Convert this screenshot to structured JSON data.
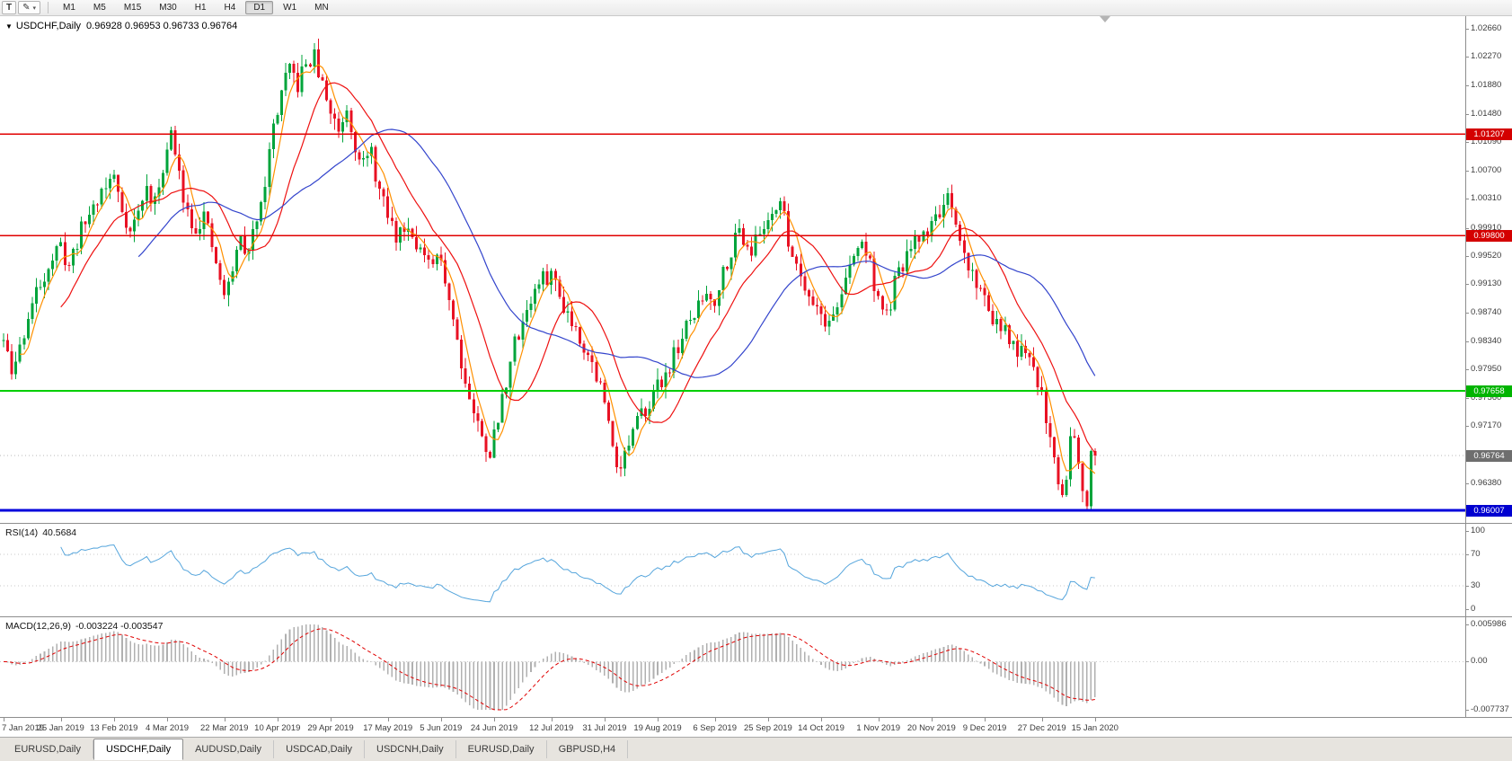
{
  "toolbar": {
    "text_tool_glyph": "T",
    "draw_tool_glyph": "✎",
    "caret_glyph": "▾",
    "timeframes": [
      "M1",
      "M5",
      "M15",
      "M30",
      "H1",
      "H4",
      "D1",
      "W1",
      "MN"
    ],
    "active_timeframe": "D1"
  },
  "chart": {
    "collapse_icon": "▼",
    "symbol": "USDCHF,Daily",
    "ohlc": "0.96928 0.96953 0.96733 0.96764"
  },
  "price_axis": {
    "range": [
      0.95833,
      1.02834
    ],
    "ticks": [
      "1.02660",
      "1.02270",
      "1.01880",
      "1.01480",
      "1.01090",
      "1.00700",
      "1.00310",
      "0.99910",
      "0.99520",
      "0.99130",
      "0.98740",
      "0.98340",
      "0.97950",
      "0.97560",
      "0.97170",
      "0.96380"
    ]
  },
  "hlines": [
    {
      "value": 1.01207,
      "label": "1.01207",
      "color": "#e00000",
      "tag_bg": "#d40000",
      "width": 1.4
    },
    {
      "value": 0.998,
      "label": "0.99800",
      "color": "#e00000",
      "tag_bg": "#d40000",
      "width": 1.4
    },
    {
      "value": 0.97658,
      "label": "0.97658",
      "color": "#00ce00",
      "tag_bg": "#00b400",
      "width": 2
    },
    {
      "value": 0.96007,
      "label": "0.96007",
      "color": "#0000dc",
      "tag_bg": "#0000d0",
      "width": 3
    }
  ],
  "current_price": {
    "value": 0.96764,
    "label": "0.96764",
    "tag_bg": "#6e6e6e",
    "line_color": "#b8b8b8"
  },
  "rsi": {
    "name": "RSI(14)",
    "value": "40.5684",
    "period": 14,
    "color": "#55a5dc",
    "levels": [
      70,
      30
    ],
    "ticks": [
      {
        "v": 100,
        "label": "100"
      },
      {
        "v": 70,
        "label": "70"
      },
      {
        "v": 30,
        "label": "30"
      },
      {
        "v": 0,
        "label": "0"
      }
    ]
  },
  "macd": {
    "name": "MACD(12,26,9)",
    "values": "-0.003224 -0.003547",
    "fast": 12,
    "slow": 26,
    "signal": 9,
    "hist_color": "#b0b0b0",
    "signal_color": "#e00000",
    "axis_max": {
      "v": 0.005986,
      "label": "0.005986"
    },
    "axis_zero": {
      "label": "0.00"
    },
    "axis_min": {
      "v": -0.007737,
      "label": "-0.007737"
    }
  },
  "date_axis": [
    {
      "label": "7 Jan 2019",
      "i": 0
    },
    {
      "label": "25 Jan 2019",
      "i": 14
    },
    {
      "label": "13 Feb 2019",
      "i": 27
    },
    {
      "label": "4 Mar 2019",
      "i": 40
    },
    {
      "label": "22 Mar 2019",
      "i": 54
    },
    {
      "label": "10 Apr 2019",
      "i": 67
    },
    {
      "label": "29 Apr 2019",
      "i": 80
    },
    {
      "label": "17 May 2019",
      "i": 94
    },
    {
      "label": "5 Jun 2019",
      "i": 107
    },
    {
      "label": "24 Jun 2019",
      "i": 120
    },
    {
      "label": "12 Jul 2019",
      "i": 134
    },
    {
      "label": "31 Jul 2019",
      "i": 147
    },
    {
      "label": "19 Aug 2019",
      "i": 160
    },
    {
      "label": "6 Sep 2019",
      "i": 174
    },
    {
      "label": "25 Sep 2019",
      "i": 187
    },
    {
      "label": "14 Oct 2019",
      "i": 200
    },
    {
      "label": "1 Nov 2019",
      "i": 214
    },
    {
      "label": "20 Nov 2019",
      "i": 227
    },
    {
      "label": "9 Dec 2019",
      "i": 240
    },
    {
      "label": "27 Dec 2019",
      "i": 254
    },
    {
      "label": "15 Jan 2020",
      "i": 267
    }
  ],
  "tabs": [
    {
      "label": "EURUSD,Daily",
      "active": false
    },
    {
      "label": "USDCHF,Daily",
      "active": true
    },
    {
      "label": "AUDUSD,Daily",
      "active": false
    },
    {
      "label": "USDCAD,Daily",
      "active": false
    },
    {
      "label": "USDCNH,Daily",
      "active": false
    },
    {
      "label": "EURUSD,Daily",
      "active": false
    },
    {
      "label": "GBPUSD,H4",
      "active": false
    }
  ],
  "chart_data": {
    "type": "candlestick",
    "symbol": "USDCHF",
    "timeframe": "Daily",
    "count": 268,
    "seed": 11,
    "last_close": 0.96764,
    "last_candle": {
      "open": 0.96928,
      "high": 0.96953,
      "low": 0.96733,
      "close": 0.96764
    },
    "bull_color": "#00a43b",
    "bear_color": "#e81123",
    "ma": [
      {
        "period": 5,
        "method": "sma",
        "color": "#ff9000"
      },
      {
        "period": 15,
        "method": "sma",
        "color": "#ee1111"
      },
      {
        "period": 34,
        "method": "sma",
        "color": "#3344cc"
      }
    ],
    "waypoints": [
      [
        0,
        0.9835
      ],
      [
        2,
        0.9788
      ],
      [
        4,
        0.9825
      ],
      [
        6,
        0.9868
      ],
      [
        8,
        0.99
      ],
      [
        10,
        0.9928
      ],
      [
        12,
        0.995
      ],
      [
        14,
        0.9963
      ],
      [
        16,
        0.9938
      ],
      [
        18,
        0.9974
      ],
      [
        20,
        1.0
      ],
      [
        22,
        1.0022
      ],
      [
        24,
        1.0042
      ],
      [
        27,
        1.0062
      ],
      [
        29,
        1.0018
      ],
      [
        31,
        0.9986
      ],
      [
        33,
        1.0012
      ],
      [
        35,
        1.0045
      ],
      [
        37,
        1.0022
      ],
      [
        39,
        1.0078
      ],
      [
        41,
        1.012
      ],
      [
        43,
        1.0062
      ],
      [
        45,
        1.0015
      ],
      [
        47,
        0.9992
      ],
      [
        49,
        1.0008
      ],
      [
        51,
        0.9962
      ],
      [
        53,
        0.992
      ],
      [
        54,
        0.9892
      ],
      [
        56,
        0.9936
      ],
      [
        58,
        0.9976
      ],
      [
        60,
        0.9952
      ],
      [
        62,
        1.001
      ],
      [
        64,
        1.0058
      ],
      [
        66,
        1.013
      ],
      [
        68,
        1.0178
      ],
      [
        70,
        1.0208
      ],
      [
        72,
        1.0188
      ],
      [
        74,
        1.0218
      ],
      [
        76,
        1.0226
      ],
      [
        78,
        1.0186
      ],
      [
        80,
        1.0152
      ],
      [
        82,
        1.0128
      ],
      [
        84,
        1.0158
      ],
      [
        86,
        1.0108
      ],
      [
        88,
        1.008
      ],
      [
        90,
        1.0092
      ],
      [
        92,
        1.004
      ],
      [
        94,
        1.0008
      ],
      [
        96,
        0.9978
      ],
      [
        98,
        0.9995
      ],
      [
        100,
        0.9988
      ],
      [
        102,
        0.996
      ],
      [
        104,
        0.9935
      ],
      [
        107,
        0.9948
      ],
      [
        109,
        0.9896
      ],
      [
        111,
        0.9838
      ],
      [
        113,
        0.9778
      ],
      [
        115,
        0.9738
      ],
      [
        117,
        0.97
      ],
      [
        119,
        0.9682
      ],
      [
        121,
        0.9725
      ],
      [
        123,
        0.9782
      ],
      [
        125,
        0.983
      ],
      [
        128,
        0.988
      ],
      [
        131,
        0.9914
      ],
      [
        134,
        0.9928
      ],
      [
        136,
        0.9898
      ],
      [
        139,
        0.9864
      ],
      [
        142,
        0.983
      ],
      [
        144,
        0.9802
      ],
      [
        146,
        0.9772
      ],
      [
        148,
        0.972
      ],
      [
        150,
        0.9672
      ],
      [
        151,
        0.9663
      ],
      [
        153,
        0.9692
      ],
      [
        155,
        0.972
      ],
      [
        157,
        0.9744
      ],
      [
        160,
        0.977
      ],
      [
        163,
        0.9802
      ],
      [
        166,
        0.984
      ],
      [
        169,
        0.9872
      ],
      [
        172,
        0.9902
      ],
      [
        174,
        0.9892
      ],
      [
        176,
        0.9932
      ],
      [
        178,
        0.9962
      ],
      [
        180,
        0.9988
      ],
      [
        183,
        0.9962
      ],
      [
        186,
        0.9992
      ],
      [
        188,
        1.0018
      ],
      [
        190,
        1.0028
      ],
      [
        192,
        0.9975
      ],
      [
        194,
        0.994
      ],
      [
        197,
        0.9902
      ],
      [
        200,
        0.9872
      ],
      [
        202,
        0.9856
      ],
      [
        205,
        0.9902
      ],
      [
        208,
        0.995
      ],
      [
        210,
        0.9974
      ],
      [
        212,
        0.994
      ],
      [
        214,
        0.9892
      ],
      [
        216,
        0.9866
      ],
      [
        218,
        0.9912
      ],
      [
        221,
        0.9952
      ],
      [
        224,
        0.9976
      ],
      [
        227,
        0.9996
      ],
      [
        229,
        1.0016
      ],
      [
        231,
        1.0026
      ],
      [
        233,
        0.9986
      ],
      [
        235,
        0.9952
      ],
      [
        238,
        0.9916
      ],
      [
        240,
        0.9892
      ],
      [
        243,
        0.9858
      ],
      [
        246,
        0.9836
      ],
      [
        249,
        0.9816
      ],
      [
        252,
        0.9796
      ],
      [
        254,
        0.9762
      ],
      [
        256,
        0.97
      ],
      [
        258,
        0.9645
      ],
      [
        259,
        0.9618
      ],
      [
        260,
        0.9656
      ],
      [
        261,
        0.97
      ],
      [
        262,
        0.9712
      ],
      [
        263,
        0.9672
      ],
      [
        264,
        0.9636
      ],
      [
        265,
        0.9615
      ],
      [
        266,
        0.9692
      ],
      [
        267,
        0.96764
      ]
    ]
  }
}
